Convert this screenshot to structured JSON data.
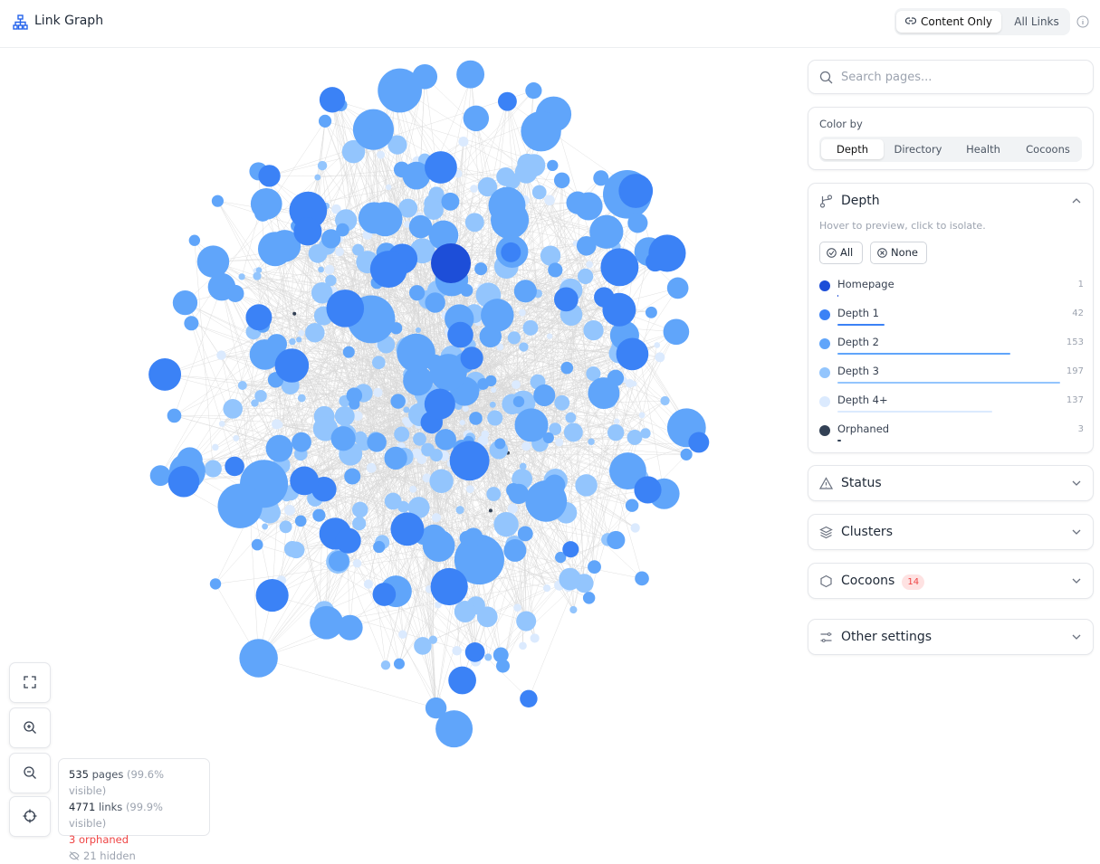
{
  "header": {
    "title": "Link Graph",
    "toggle": [
      "Content Only",
      "All Links"
    ]
  },
  "sidebar": {
    "search_placeholder": "Search pages...",
    "color_by": {
      "label": "Color by",
      "options": [
        "Depth",
        "Directory",
        "Health",
        "Cocoons"
      ]
    },
    "depth": {
      "title": "Depth",
      "hint": "Hover to preview, click to isolate.",
      "buttons": [
        "All",
        "None"
      ],
      "items": [
        {
          "name": "Homepage",
          "count": 1,
          "color": "#1d4ed8"
        },
        {
          "name": "Depth 1",
          "count": 42,
          "color": "#3b82f6"
        },
        {
          "name": "Depth 2",
          "count": 153,
          "color": "#60a5fa"
        },
        {
          "name": "Depth 3",
          "count": 197,
          "color": "#93c5fd"
        },
        {
          "name": "Depth 4+",
          "count": 137,
          "color": "#dbeafe"
        },
        {
          "name": "Orphaned",
          "count": 3,
          "color": "#334155"
        }
      ]
    },
    "sections": [
      {
        "title": "Status"
      },
      {
        "title": "Clusters"
      },
      {
        "title": "Cocoons",
        "badge": 14
      },
      {
        "title": "Other settings"
      }
    ]
  },
  "stats": {
    "pages": {
      "count": 535,
      "label": "pages",
      "note": "(99.6% visible)"
    },
    "links": {
      "count": 4771,
      "label": "links",
      "note": "(99.9% visible)"
    },
    "orphaned": "3 orphaned",
    "hidden": "21 hidden"
  }
}
